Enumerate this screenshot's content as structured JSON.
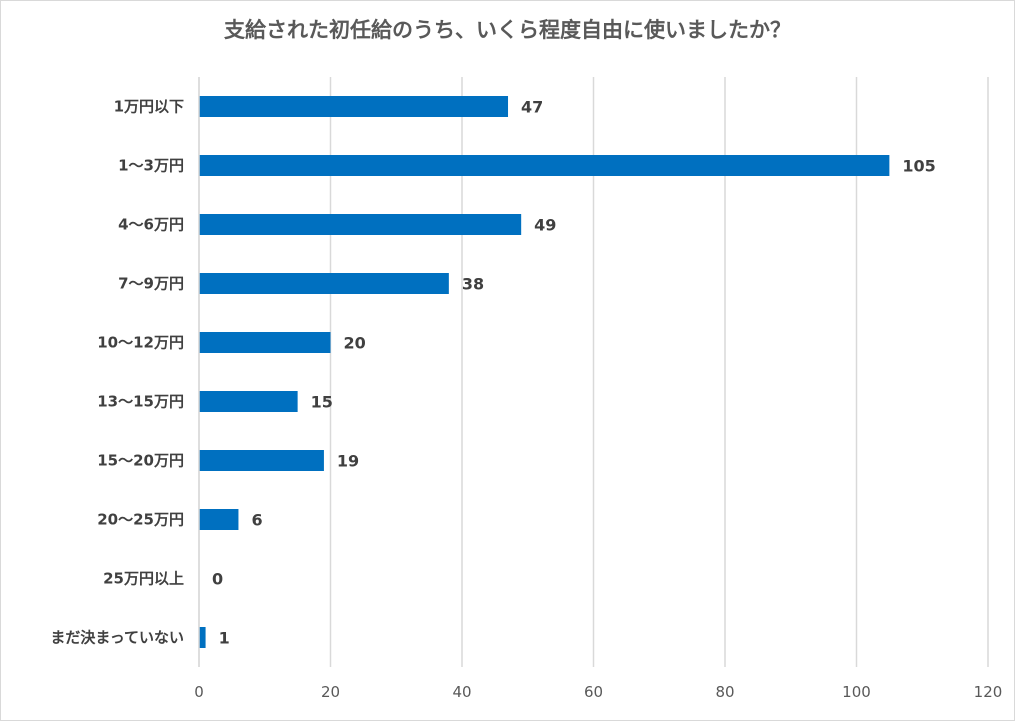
{
  "chart_data": {
    "type": "bar",
    "orientation": "horizontal",
    "title": "支給された初任給のうち、いくら程度自由に使いましたか？",
    "categories": [
      "1万円以下",
      "1～3万円",
      "4～6万円",
      "7～9万円",
      "10～12万円",
      "13～15万円",
      "15～20万円",
      "20～25万円",
      "25万円以上",
      "まだ決まっていない"
    ],
    "values": [
      47,
      105,
      49,
      38,
      20,
      15,
      19,
      6,
      0,
      1
    ],
    "xlim": [
      0,
      120
    ],
    "xticks": [
      0,
      20,
      40,
      60,
      80,
      100,
      120
    ],
    "grid": true,
    "bar_color": "#0070c0",
    "data_labels": true
  }
}
